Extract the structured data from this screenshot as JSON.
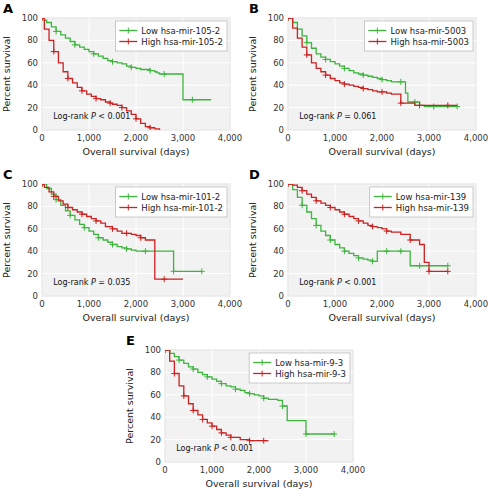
{
  "chart_data": [
    {
      "type": "step",
      "title": "A",
      "xlabel": "Overall survival (days)",
      "ylabel": "Percent survival",
      "annotations": [
        "Log-rank P < 0.001"
      ],
      "xlim": [
        0,
        4000
      ],
      "ylim": [
        0,
        100
      ],
      "xticks": [
        0,
        {
          "value": 1000,
          "label": "1,000"
        },
        {
          "value": 2000,
          "label": "2,000"
        },
        {
          "value": 3000,
          "label": "3,000"
        },
        {
          "value": 4000,
          "label": "4,000"
        }
      ],
      "yticks": [
        0,
        20,
        40,
        60,
        80,
        100
      ],
      "grid": true,
      "legend": "upper-right",
      "series": [
        {
          "name": "Low hsa-mir-105-2",
          "color": "#3db53d",
          "marker": "plus",
          "x": [
            0,
            50,
            100,
            200,
            300,
            400,
            500,
            600,
            700,
            800,
            900,
            1000,
            1100,
            1200,
            1300,
            1400,
            1500,
            1600,
            1700,
            1800,
            1900,
            2000,
            2100,
            2200,
            2300,
            2400,
            2450,
            2500,
            2600,
            2700,
            2800,
            3000,
            3200,
            3400,
            3600
          ],
          "values": [
            100,
            98,
            96,
            92,
            88,
            85,
            82,
            79,
            76,
            74,
            72,
            70,
            68,
            66,
            64,
            62,
            61,
            60,
            59,
            57,
            56,
            55,
            54,
            54,
            53,
            52,
            51,
            50,
            50,
            50,
            50,
            27,
            27,
            27,
            27
          ]
        },
        {
          "name": "High hsa-mir-105-2",
          "color": "#cc2222",
          "marker": "plus",
          "x": [
            0,
            50,
            150,
            250,
            350,
            450,
            550,
            650,
            750,
            850,
            950,
            1050,
            1150,
            1250,
            1350,
            1450,
            1500,
            1600,
            1700,
            1800,
            1900,
            2000,
            2100,
            2200,
            2300,
            2400,
            2500
          ],
          "values": [
            100,
            90,
            80,
            70,
            60,
            52,
            46,
            42,
            38,
            35,
            32,
            30,
            28,
            27,
            25,
            24,
            23,
            22,
            20,
            17,
            14,
            10,
            6,
            3,
            2,
            1,
            0
          ]
        }
      ]
    },
    {
      "type": "step",
      "title": "B",
      "xlabel": "Overall survival (days)",
      "ylabel": "Percent survival",
      "annotations": [
        "Log-rank P = 0.061"
      ],
      "xlim": [
        0,
        4000
      ],
      "ylim": [
        0,
        100
      ],
      "xticks": [
        0,
        {
          "value": 1000,
          "label": "1,000"
        },
        {
          "value": 2000,
          "label": "2,000"
        },
        {
          "value": 3000,
          "label": "3,000"
        },
        {
          "value": 4000,
          "label": "4,000"
        }
      ],
      "yticks": [
        0,
        20,
        40,
        60,
        80,
        100
      ],
      "grid": true,
      "legend": "upper-right",
      "series": [
        {
          "name": "Low hsa-mir-5003",
          "color": "#3db53d",
          "marker": "plus",
          "x": [
            0,
            100,
            200,
            300,
            400,
            500,
            600,
            700,
            800,
            900,
            1000,
            1100,
            1200,
            1300,
            1400,
            1500,
            1600,
            1700,
            1800,
            1900,
            2000,
            2100,
            2200,
            2300,
            2400,
            2500,
            2550,
            2600,
            2700,
            2800,
            2900,
            3000,
            3100,
            3200,
            3300,
            3400,
            3600
          ],
          "values": [
            100,
            96,
            90,
            84,
            78,
            73,
            68,
            65,
            63,
            61,
            59,
            57,
            55,
            53,
            51,
            50,
            49,
            48,
            47,
            46,
            45,
            44,
            43,
            43,
            43,
            33,
            25,
            25,
            25,
            22,
            21,
            21,
            21,
            21,
            21,
            21,
            21
          ]
        },
        {
          "name": "High hsa-mir-5003",
          "color": "#cc2222",
          "marker": "plus",
          "x": [
            0,
            100,
            200,
            300,
            400,
            500,
            600,
            700,
            800,
            900,
            1000,
            1100,
            1200,
            1300,
            1400,
            1500,
            1600,
            1700,
            1800,
            1900,
            2000,
            2100,
            2200,
            2300,
            2400,
            2500,
            2600,
            2700,
            2800,
            2900,
            3000,
            3200,
            3400,
            3600
          ],
          "values": [
            100,
            91,
            82,
            74,
            67,
            60,
            55,
            52,
            49,
            46,
            44,
            42,
            41,
            40,
            39,
            38,
            37,
            36,
            35,
            34,
            34,
            33,
            32,
            32,
            24,
            24,
            24,
            22,
            22,
            22,
            22,
            22,
            22,
            22
          ]
        }
      ]
    },
    {
      "type": "step",
      "title": "C",
      "xlabel": "Overall survival (days)",
      "ylabel": "Percent survival",
      "annotations": [
        "Log-rank P = 0.035"
      ],
      "xlim": [
        0,
        4000
      ],
      "ylim": [
        0,
        100
      ],
      "xticks": [
        0,
        {
          "value": 1000,
          "label": "1,000"
        },
        {
          "value": 2000,
          "label": "2,000"
        },
        {
          "value": 3000,
          "label": "3,000"
        },
        {
          "value": 4000,
          "label": "4,000"
        }
      ],
      "yticks": [
        0,
        20,
        40,
        60,
        80,
        100
      ],
      "grid": true,
      "legend": "upper-right",
      "series": [
        {
          "name": "Low hsa-mir-101-2",
          "color": "#3db53d",
          "marker": "plus",
          "x": [
            0,
            100,
            200,
            300,
            400,
            500,
            600,
            700,
            800,
            900,
            1000,
            1100,
            1200,
            1300,
            1400,
            1500,
            1600,
            1700,
            1800,
            1900,
            2000,
            2200,
            2400,
            2600,
            2800,
            3000,
            3200,
            3400
          ],
          "values": [
            100,
            96,
            91,
            86,
            81,
            76,
            72,
            68,
            64,
            61,
            58,
            55,
            52,
            50,
            48,
            46,
            44,
            43,
            42,
            41,
            40,
            40,
            40,
            40,
            22,
            22,
            22,
            22
          ]
        },
        {
          "name": "High hsa-mir-101-2",
          "color": "#cc2222",
          "marker": "plus",
          "x": [
            0,
            50,
            150,
            250,
            350,
            450,
            550,
            650,
            750,
            850,
            950,
            1050,
            1150,
            1250,
            1350,
            1500,
            1600,
            1700,
            1800,
            1900,
            2000,
            2100,
            2200,
            2400,
            2600,
            2800,
            3000
          ],
          "values": [
            100,
            97,
            93,
            89,
            85,
            82,
            79,
            77,
            75,
            73,
            71,
            69,
            67,
            65,
            62,
            60,
            58,
            56,
            56,
            55,
            54,
            52,
            50,
            15,
            15,
            15,
            15
          ]
        }
      ]
    },
    {
      "type": "step",
      "title": "D",
      "xlabel": "Overall survival (days)",
      "ylabel": "Percent survival",
      "annotations": [
        "Log-rank P < 0.001"
      ],
      "xlim": [
        0,
        4000
      ],
      "ylim": [
        0,
        100
      ],
      "xticks": [
        0,
        {
          "value": 1000,
          "label": "1,000"
        },
        {
          "value": 2000,
          "label": "2,000"
        },
        {
          "value": 3000,
          "label": "3,000"
        },
        {
          "value": 4000,
          "label": "4,000"
        }
      ],
      "yticks": [
        0,
        20,
        40,
        60,
        80,
        100
      ],
      "grid": true,
      "legend": "upper-right",
      "series": [
        {
          "name": "Low hsa-mir-139",
          "color": "#3db53d",
          "marker": "plus",
          "x": [
            0,
            100,
            200,
            300,
            400,
            500,
            600,
            700,
            800,
            900,
            1000,
            1100,
            1200,
            1300,
            1400,
            1500,
            1600,
            1700,
            1800,
            1900,
            2000,
            2100,
            2200,
            2300,
            2400,
            2500,
            2600,
            2800,
            3000,
            3200,
            3400
          ],
          "values": [
            100,
            95,
            88,
            81,
            75,
            69,
            63,
            58,
            54,
            50,
            46,
            43,
            40,
            38,
            36,
            34,
            33,
            32,
            31,
            40,
            40,
            40,
            40,
            40,
            40,
            40,
            27,
            27,
            27,
            27,
            27
          ]
        },
        {
          "name": "High hsa-mir-139",
          "color": "#cc2222",
          "marker": "plus",
          "x": [
            0,
            100,
            200,
            300,
            400,
            500,
            600,
            700,
            800,
            900,
            1000,
            1100,
            1200,
            1300,
            1400,
            1500,
            1600,
            1700,
            1800,
            1900,
            2000,
            2100,
            2200,
            2400,
            2600,
            2800,
            2900,
            3000,
            3100,
            3200,
            3400
          ],
          "values": [
            100,
            99,
            97,
            94,
            91,
            88,
            85,
            83,
            81,
            79,
            77,
            75,
            73,
            71,
            69,
            67,
            65,
            63,
            62,
            61,
            60,
            58,
            57,
            55,
            50,
            46,
            30,
            22,
            22,
            22,
            22
          ]
        }
      ]
    },
    {
      "type": "step",
      "title": "E",
      "xlabel": "Overall survival (days)",
      "ylabel": "Percent survival",
      "annotations": [
        "Log-rank P < 0.001"
      ],
      "xlim": [
        0,
        4000
      ],
      "ylim": [
        0,
        100
      ],
      "xticks": [
        0,
        {
          "value": 1000,
          "label": "1,000"
        },
        {
          "value": 2000,
          "label": "2,000"
        },
        {
          "value": 3000,
          "label": "3,000"
        },
        {
          "value": 4000,
          "label": "4,000"
        }
      ],
      "yticks": [
        0,
        20,
        40,
        60,
        80,
        100
      ],
      "grid": true,
      "legend": "upper-right",
      "series": [
        {
          "name": "Low hsa-mir-9-3",
          "color": "#3db53d",
          "marker": "plus",
          "x": [
            0,
            100,
            200,
            300,
            400,
            500,
            600,
            700,
            800,
            900,
            1000,
            1100,
            1200,
            1300,
            1400,
            1500,
            1600,
            1700,
            1800,
            1900,
            2000,
            2100,
            2200,
            2400,
            2500,
            2600,
            2800,
            3000,
            3200,
            3400,
            3600
          ],
          "values": [
            100,
            97,
            94,
            91,
            88,
            85,
            83,
            80,
            78,
            76,
            74,
            72,
            70,
            68,
            67,
            65,
            64,
            62,
            61,
            60,
            59,
            57,
            56,
            55,
            50,
            37,
            37,
            25,
            25,
            25,
            25
          ]
        },
        {
          "name": "High hsa-mir-9-3",
          "color": "#cc2222",
          "marker": "plus",
          "x": [
            0,
            100,
            200,
            300,
            400,
            500,
            600,
            700,
            800,
            900,
            1000,
            1100,
            1200,
            1300,
            1400,
            1600,
            1800,
            2000,
            2100,
            2200
          ],
          "values": [
            100,
            90,
            79,
            68,
            59,
            52,
            46,
            42,
            38,
            35,
            32,
            29,
            26,
            24,
            22,
            20,
            19,
            19,
            19,
            19
          ]
        }
      ]
    }
  ]
}
